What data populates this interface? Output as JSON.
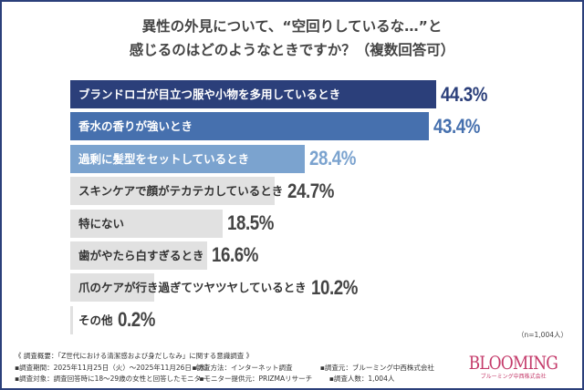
{
  "chart_data": {
    "type": "bar",
    "orientation": "horizontal",
    "title_lines": [
      "異性の外見について、“空回りしているな…”と",
      "感じるのはどのようなときですか？（複数回答可）"
    ],
    "categories": [
      "ブランドロゴが目立つ服や小物を多用しているとき",
      "香水の香りが強いとき",
      "過剰に髪型をセットしているとき",
      "スキンケアで顔がテカテカしているとき",
      "特にない",
      "歯がやたら白すぎるとき",
      "爪のケアが行き過ぎてツヤツヤしているとき",
      "その他"
    ],
    "values": [
      44.3,
      43.4,
      28.4,
      24.7,
      18.5,
      16.6,
      10.2,
      0.2
    ],
    "value_labels": [
      "44.3%",
      "43.4%",
      "28.4%",
      "24.7%",
      "18.5%",
      "16.6%",
      "10.2%",
      "0.2%"
    ],
    "bar_colors": [
      "#2b3f7a",
      "#4670ae",
      "#7ba3cf",
      "#e1e1e1",
      "#e1e1e1",
      "#e1e1e1",
      "#e1e1e1",
      "#e1e1e1"
    ],
    "label_colors": [
      "#ffffff",
      "#ffffff",
      "#ffffff",
      "#333333",
      "#333333",
      "#333333",
      "#333333",
      "#333333"
    ],
    "value_colors": [
      "#2b3f7a",
      "#4670ae",
      "#7ba3cf",
      "#444444",
      "#444444",
      "#444444",
      "#444444",
      "#444444"
    ],
    "grid": false,
    "note": "（n=1,004人）"
  },
  "footer": {
    "summary": "《 調査概要：「Z世代における清潔感および身だしなみ」に関する意識調査 》",
    "period": "▪調査期間：2025年11月25日（火）～2025年11月26日（水）",
    "method": "▪調査方法：インターネット調査",
    "source": "▪調査元：ブルーミング中西株式会社",
    "target": "▪調査対象：調査回答時に18～29歳の女性と回答したモニター",
    "provider": "▪モニター提供元：PRIZMAリサーチ",
    "count": "▪調査人数：1,004人"
  },
  "logo": {
    "brand": "BLOOMING",
    "sub": "ブルーミング中西株式会社",
    "color": "#c43a6a"
  }
}
